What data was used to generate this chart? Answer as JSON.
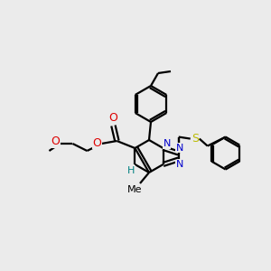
{
  "background_color": "#ebebeb",
  "bond_color": "#000000",
  "bond_width": 1.6,
  "N_color": "#0000cc",
  "O_color": "#dd0000",
  "S_color": "#bbbb00",
  "H_color": "#008080",
  "figsize": [
    3.0,
    3.0
  ],
  "dpi": 100,
  "xlim": [
    0,
    300
  ],
  "ylim": [
    0,
    300
  ]
}
